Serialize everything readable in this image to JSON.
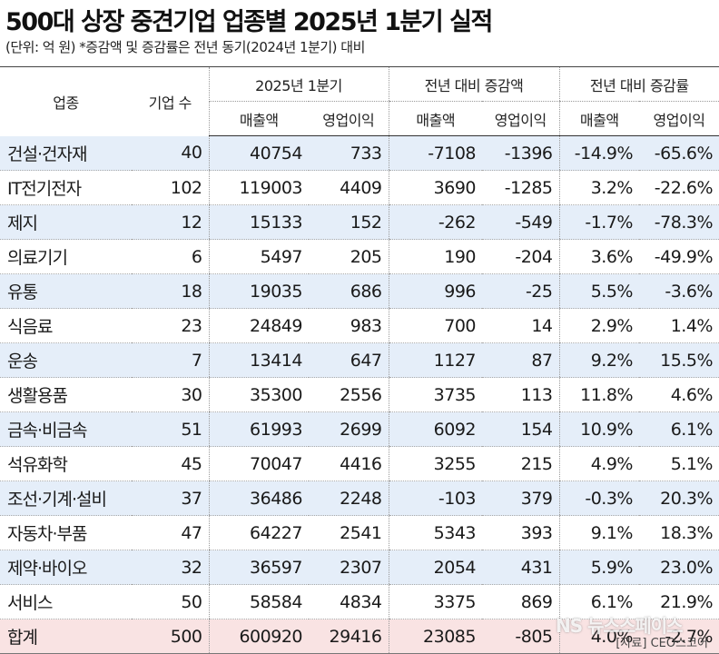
{
  "title": "500대 상장 중견기업 업종별 2025년 1분기 실적",
  "unit_note": "(단위: 억 원)  *증감액 및 증감률은 전년 동기(2024년 1분기) 대비",
  "header": {
    "industry": "업종",
    "count": "기업 수",
    "group1": "2025년 1분기",
    "group2": "전년 대비 증감액",
    "group3": "전년 대비 증감률",
    "sales": "매출액",
    "op": "영업이익"
  },
  "chart_data": {
    "type": "table",
    "title": "500대 상장 중견기업 업종별 2025년 1분기 실적",
    "columns": [
      "업종",
      "기업 수",
      "2025년 1분기 매출액",
      "2025년 1분기 영업이익",
      "전년 대비 증감액 매출액",
      "전년 대비 증감액 영업이익",
      "전년 대비 증감률 매출액",
      "전년 대비 증감률 영업이익"
    ],
    "rows": [
      [
        "건설·건자재",
        "40",
        "40754",
        "733",
        "-7108",
        "-1396",
        "-14.9%",
        "-65.6%"
      ],
      [
        "IT전기전자",
        "102",
        "119003",
        "4409",
        "3690",
        "-1285",
        "3.2%",
        "-22.6%"
      ],
      [
        "제지",
        "12",
        "15133",
        "152",
        "-262",
        "-549",
        "-1.7%",
        "-78.3%"
      ],
      [
        "의료기기",
        "6",
        "5497",
        "205",
        "190",
        "-204",
        "3.6%",
        "-49.9%"
      ],
      [
        "유통",
        "18",
        "19035",
        "686",
        "996",
        "-25",
        "5.5%",
        "-3.6%"
      ],
      [
        "식음료",
        "23",
        "24849",
        "983",
        "700",
        "14",
        "2.9%",
        "1.4%"
      ],
      [
        "운송",
        "7",
        "13414",
        "647",
        "1127",
        "87",
        "9.2%",
        "15.5%"
      ],
      [
        "생활용품",
        "30",
        "35300",
        "2556",
        "3735",
        "113",
        "11.8%",
        "4.6%"
      ],
      [
        "금속·비금속",
        "51",
        "61993",
        "2699",
        "6092",
        "154",
        "10.9%",
        "6.1%"
      ],
      [
        "석유화학",
        "45",
        "70047",
        "4416",
        "3255",
        "215",
        "4.9%",
        "5.1%"
      ],
      [
        "조선·기계·설비",
        "37",
        "36486",
        "2248",
        "-103",
        "379",
        "-0.3%",
        "20.3%"
      ],
      [
        "자동차·부품",
        "47",
        "64227",
        "2541",
        "5343",
        "393",
        "9.1%",
        "18.3%"
      ],
      [
        "제약·바이오",
        "32",
        "36597",
        "2307",
        "2054",
        "431",
        "5.9%",
        "23.0%"
      ],
      [
        "서비스",
        "50",
        "58584",
        "4834",
        "3375",
        "869",
        "6.1%",
        "21.9%"
      ],
      [
        "합계",
        "500",
        "600920",
        "29416",
        "23085",
        "-805",
        "4.0%",
        "-2.7%"
      ]
    ]
  },
  "footer": {
    "source": "[자료] CEO스코어",
    "watermark": "NS 뉴스스페이스"
  }
}
